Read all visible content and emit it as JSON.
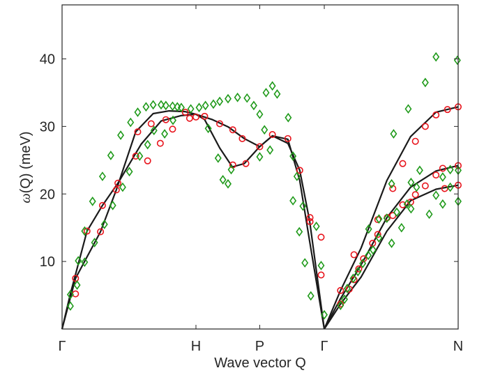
{
  "chart_data": {
    "type": "line",
    "title": "",
    "xlabel": "Wave vector Q",
    "ylabel_symbol": "ω",
    "ylabel_rest": "(Q) (meV)",
    "xlim": [
      0,
      1
    ],
    "ylim": [
      0,
      48
    ],
    "yticks": [
      10,
      20,
      30,
      40
    ],
    "xticks": [
      {
        "x": 0.0,
        "label": "Γ"
      },
      {
        "x": 0.338,
        "label": "H"
      },
      {
        "x": 0.499,
        "label": "P"
      },
      {
        "x": 0.662,
        "label": "Γ"
      },
      {
        "x": 1.0,
        "label": "N"
      }
    ],
    "grid": false,
    "colors": {
      "curve": "#1a1a1a",
      "circle": "#e8141c",
      "diamond": "#1f9a1a"
    },
    "series": [
      {
        "id": "theory-1",
        "style": "line",
        "points": [
          [
            0.0,
            0.0
          ],
          [
            0.021,
            5.2
          ],
          [
            0.063,
            14.5
          ],
          [
            0.102,
            18.3
          ],
          [
            0.141,
            21.6
          ],
          [
            0.2,
            27.4
          ],
          [
            0.25,
            30.8
          ],
          [
            0.3,
            31.6
          ],
          [
            0.338,
            31.8
          ],
          [
            0.38,
            31.0
          ],
          [
            0.42,
            29.9
          ],
          [
            0.46,
            28.2
          ],
          [
            0.499,
            27.0
          ],
          [
            0.531,
            28.6
          ],
          [
            0.57,
            28.1
          ],
          [
            0.6,
            22.0
          ],
          [
            0.625,
            13.0
          ],
          [
            0.662,
            0.0
          ]
        ]
      },
      {
        "id": "theory-2",
        "style": "line",
        "points": [
          [
            0.0,
            0.0
          ],
          [
            0.034,
            7.5
          ],
          [
            0.097,
            14.4
          ],
          [
            0.137,
            20.6
          ],
          [
            0.186,
            29.2
          ],
          [
            0.23,
            31.9
          ],
          [
            0.27,
            32.3
          ],
          [
            0.31,
            32.2
          ],
          [
            0.338,
            31.8
          ],
          [
            0.36,
            31.0
          ],
          [
            0.398,
            26.8
          ],
          [
            0.43,
            24.0
          ],
          [
            0.46,
            24.5
          ],
          [
            0.499,
            27.0
          ],
          [
            0.531,
            28.6
          ],
          [
            0.57,
            27.5
          ],
          [
            0.6,
            23.5
          ],
          [
            0.625,
            16.0
          ],
          [
            0.662,
            0.0
          ]
        ]
      },
      {
        "id": "theory-3",
        "style": "line",
        "points": [
          [
            0.662,
            0.0
          ],
          [
            0.703,
            3.7
          ],
          [
            0.755,
            7.7
          ],
          [
            0.82,
            14.5
          ],
          [
            0.88,
            19.0
          ],
          [
            0.944,
            20.7
          ],
          [
            1.0,
            21.3
          ]
        ]
      },
      {
        "id": "theory-4",
        "style": "line",
        "points": [
          [
            0.662,
            0.0
          ],
          [
            0.703,
            4.5
          ],
          [
            0.755,
            9.5
          ],
          [
            0.82,
            16.5
          ],
          [
            0.88,
            21.0
          ],
          [
            0.944,
            23.4
          ],
          [
            1.0,
            24.2
          ]
        ]
      },
      {
        "id": "theory-5",
        "style": "line",
        "points": [
          [
            0.662,
            0.0
          ],
          [
            0.703,
            5.7
          ],
          [
            0.755,
            12.0
          ],
          [
            0.82,
            22.0
          ],
          [
            0.88,
            28.5
          ],
          [
            0.944,
            32.1
          ],
          [
            1.0,
            32.9
          ]
        ]
      },
      {
        "id": "calc-circles",
        "style": "circle",
        "points": [
          [
            0.034,
            5.2
          ],
          [
            0.034,
            7.5
          ],
          [
            0.063,
            14.5
          ],
          [
            0.097,
            14.4
          ],
          [
            0.102,
            18.3
          ],
          [
            0.137,
            20.6
          ],
          [
            0.141,
            21.6
          ],
          [
            0.186,
            25.6
          ],
          [
            0.191,
            29.2
          ],
          [
            0.216,
            24.9
          ],
          [
            0.225,
            30.4
          ],
          [
            0.248,
            27.5
          ],
          [
            0.262,
            31.0
          ],
          [
            0.279,
            29.6
          ],
          [
            0.311,
            32.1
          ],
          [
            0.322,
            31.2
          ],
          [
            0.338,
            31.4
          ],
          [
            0.36,
            31.5
          ],
          [
            0.398,
            30.4
          ],
          [
            0.431,
            29.5
          ],
          [
            0.455,
            28.2
          ],
          [
            0.431,
            24.3
          ],
          [
            0.464,
            24.5
          ],
          [
            0.499,
            27.0
          ],
          [
            0.531,
            28.8
          ],
          [
            0.57,
            28.2
          ],
          [
            0.6,
            23.5
          ],
          [
            0.626,
            15.9
          ],
          [
            0.626,
            16.5
          ],
          [
            0.654,
            13.6
          ],
          [
            0.654,
            8.0
          ],
          [
            0.703,
            3.7
          ],
          [
            0.703,
            5.7
          ],
          [
            0.725,
            5.9
          ],
          [
            0.737,
            7.3
          ],
          [
            0.749,
            8.9
          ],
          [
            0.761,
            10.4
          ],
          [
            0.784,
            12.7
          ],
          [
            0.797,
            14.0
          ],
          [
            0.821,
            16.5
          ],
          [
            0.835,
            16.8
          ],
          [
            0.86,
            18.4
          ],
          [
            0.88,
            18.8
          ],
          [
            0.892,
            19.9
          ],
          [
            0.917,
            21.2
          ],
          [
            0.944,
            22.8
          ],
          [
            0.961,
            23.8
          ],
          [
            1.0,
            24.2
          ],
          [
            0.966,
            20.8
          ],
          [
            1.0,
            21.3
          ],
          [
            0.737,
            11.0
          ],
          [
            0.797,
            16.2
          ],
          [
            0.835,
            20.8
          ],
          [
            0.86,
            24.5
          ],
          [
            0.892,
            27.8
          ],
          [
            0.917,
            30.0
          ],
          [
            0.944,
            31.7
          ],
          [
            0.973,
            32.5
          ],
          [
            1.0,
            32.9
          ]
        ]
      },
      {
        "id": "exp-diamonds",
        "style": "diamond",
        "points": [
          [
            0.021,
            5.1
          ],
          [
            0.021,
            3.4
          ],
          [
            0.038,
            6.5
          ],
          [
            0.041,
            10.1
          ],
          [
            0.057,
            14.5
          ],
          [
            0.057,
            9.9
          ],
          [
            0.077,
            18.9
          ],
          [
            0.082,
            12.8
          ],
          [
            0.102,
            22.6
          ],
          [
            0.107,
            15.5
          ],
          [
            0.123,
            25.7
          ],
          [
            0.128,
            18.3
          ],
          [
            0.148,
            28.7
          ],
          [
            0.153,
            21.0
          ],
          [
            0.173,
            30.6
          ],
          [
            0.17,
            23.3
          ],
          [
            0.191,
            32.1
          ],
          [
            0.196,
            25.6
          ],
          [
            0.212,
            32.9
          ],
          [
            0.216,
            27.3
          ],
          [
            0.23,
            33.2
          ],
          [
            0.25,
            33.2
          ],
          [
            0.262,
            33.1
          ],
          [
            0.279,
            33.0
          ],
          [
            0.291,
            32.9
          ],
          [
            0.301,
            32.8
          ],
          [
            0.325,
            32.6
          ],
          [
            0.346,
            32.8
          ],
          [
            0.362,
            33.1
          ],
          [
            0.382,
            33.3
          ],
          [
            0.398,
            33.7
          ],
          [
            0.419,
            34.1
          ],
          [
            0.443,
            34.3
          ],
          [
            0.467,
            34.2
          ],
          [
            0.484,
            33.1
          ],
          [
            0.499,
            31.8
          ],
          [
            0.515,
            35.0
          ],
          [
            0.531,
            36.0
          ],
          [
            0.543,
            34.8
          ],
          [
            0.571,
            31.3
          ],
          [
            0.259,
            28.9
          ],
          [
            0.232,
            29.4
          ],
          [
            0.28,
            30.9
          ],
          [
            0.369,
            29.7
          ],
          [
            0.394,
            25.3
          ],
          [
            0.406,
            22.1
          ],
          [
            0.419,
            21.5
          ],
          [
            0.427,
            23.6
          ],
          [
            0.499,
            25.5
          ],
          [
            0.525,
            26.5
          ],
          [
            0.511,
            29.5
          ],
          [
            0.583,
            25.6
          ],
          [
            0.593,
            22.6
          ],
          [
            0.608,
            18.2
          ],
          [
            0.583,
            19.0
          ],
          [
            0.599,
            14.4
          ],
          [
            0.613,
            9.8
          ],
          [
            0.628,
            4.9
          ],
          [
            0.642,
            15.2
          ],
          [
            0.654,
            9.4
          ],
          [
            0.662,
            2.1
          ],
          [
            0.703,
            3.5
          ],
          [
            0.713,
            4.4
          ],
          [
            0.72,
            6.0
          ],
          [
            0.735,
            7.5
          ],
          [
            0.747,
            8.5
          ],
          [
            0.759,
            9.7
          ],
          [
            0.773,
            10.9
          ],
          [
            0.785,
            11.7
          ],
          [
            0.774,
            14.8
          ],
          [
            0.8,
            13.5
          ],
          [
            0.8,
            16.3
          ],
          [
            0.82,
            16.4
          ],
          [
            0.845,
            17.3
          ],
          [
            0.832,
            21.5
          ],
          [
            0.832,
            12.7
          ],
          [
            0.857,
            15.0
          ],
          [
            0.871,
            18.5
          ],
          [
            0.881,
            21.7
          ],
          [
            0.881,
            17.8
          ],
          [
            0.895,
            21.0
          ],
          [
            0.903,
            23.5
          ],
          [
            0.927,
            17.0
          ],
          [
            0.944,
            19.8
          ],
          [
            0.961,
            22.5
          ],
          [
            0.961,
            18.5
          ],
          [
            0.98,
            23.6
          ],
          [
            0.98,
            21.0
          ],
          [
            1.0,
            23.5
          ],
          [
            1.0,
            18.9
          ],
          [
            0.837,
            28.9
          ],
          [
            0.874,
            32.6
          ],
          [
            0.917,
            36.5
          ],
          [
            0.944,
            40.3
          ],
          [
            0.998,
            39.8
          ]
        ]
      }
    ]
  }
}
